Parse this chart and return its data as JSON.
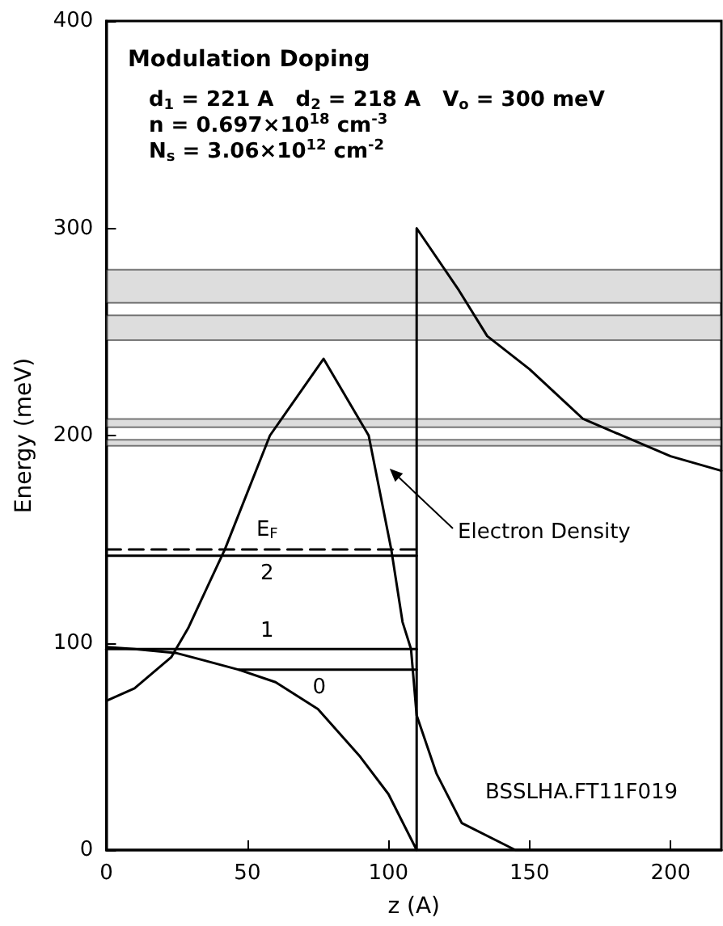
{
  "chart_data": {
    "type": "line",
    "title": "Modulation Doping",
    "subtitle": "d$_{1}$ = 221 A   d$_{2}$ = 218 A   V$_{o}$ = 300 meV\nn = 0.697×10$^{18}$ cm$^{-3}$\nN$_{s}$ = 3.06×10$^{12}$ cm$^{-2}$",
    "xlabel": "z (A)",
    "ylabel": "Energy (meV)",
    "xlim": [
      0,
      218
    ],
    "ylim": [
      0,
      400
    ],
    "xticks": [
      0,
      50,
      100,
      150,
      200
    ],
    "yticks": [
      0,
      100,
      200,
      300,
      400
    ],
    "grid": false,
    "marker": "none",
    "series": [
      {
        "color": "#000000",
        "x": [
          0,
          10,
          25,
          47,
          60,
          75,
          90,
          100,
          110,
          110,
          125,
          135,
          150,
          169,
          200,
          218
        ],
        "values": [
          98,
          97,
          95,
          87,
          81,
          68,
          45,
          27,
          0,
          300,
          270,
          248,
          232,
          208,
          190,
          183
        ]
      },
      {
        "color": "#000000",
        "x": [
          0,
          10,
          23,
          29,
          42,
          58,
          77,
          93,
          101,
          105,
          108,
          110,
          117,
          126,
          145,
          218
        ],
        "values": [
          72,
          78,
          93,
          107,
          145,
          200,
          237,
          200,
          145,
          110,
          97,
          65,
          37,
          13,
          0,
          0
        ]
      },
      {
        "name": "0",
        "color": "#000000",
        "x": [
          47,
          110
        ],
        "values": [
          87,
          87
        ]
      },
      {
        "name": "1",
        "color": "#000000",
        "x": [
          0,
          110
        ],
        "values": [
          97,
          97
        ]
      },
      {
        "name": "2",
        "color": "#000000",
        "x": [
          0,
          110
        ],
        "values": [
          142,
          142
        ]
      },
      {
        "name": "E$_{F}$",
        "color": "#000000",
        "x": [
          0,
          110
        ],
        "values": [
          145,
          145
        ],
        "line_style": "dashed"
      }
    ],
    "bands": [
      {
        "axis": "y",
        "from": 264,
        "to": 280,
        "color": "#bbbbbb"
      },
      {
        "axis": "y",
        "from": 246,
        "to": 258,
        "color": "#bbbbbb"
      },
      {
        "axis": "y",
        "from": 204,
        "to": 208,
        "color": "#bbbbbb"
      },
      {
        "axis": "y",
        "from": 195,
        "to": 198,
        "color": "#bbbbbb"
      }
    ],
    "annotations": [
      "BSSLHA.FT11F019",
      "Electron Density"
    ]
  }
}
